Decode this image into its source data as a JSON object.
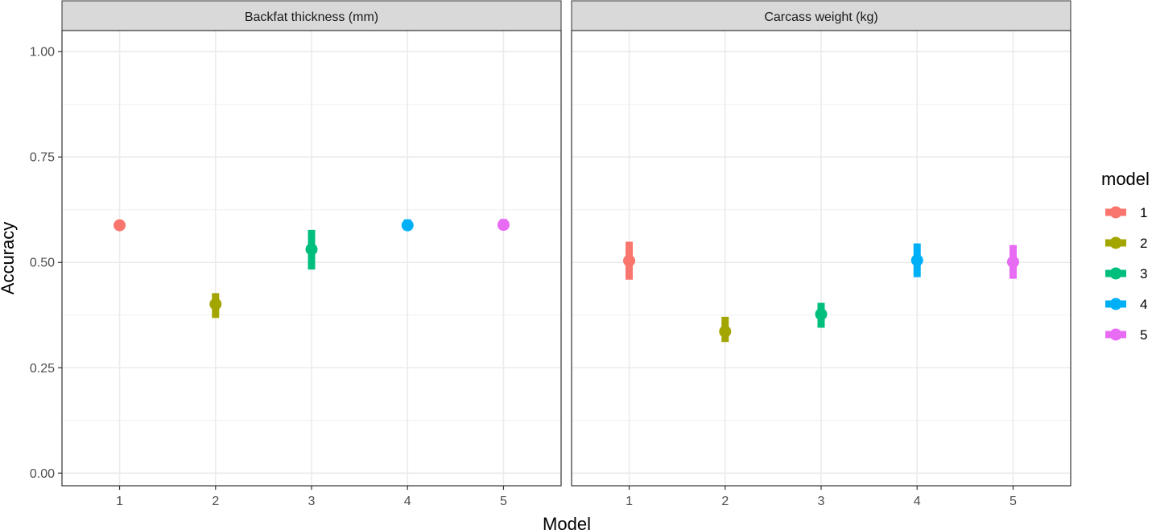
{
  "chart_data": {
    "type": "scatter",
    "subtype": "point-range (faceted)",
    "xlabel": "Model",
    "ylabel": "Accuracy",
    "ylim": [
      -0.03,
      1.05
    ],
    "yticks": [
      "0.00",
      "0.25",
      "0.50",
      "0.75",
      "1.00"
    ],
    "ytick_values": [
      0,
      0.25,
      0.5,
      0.75,
      1.0
    ],
    "categories": [
      "1",
      "2",
      "3",
      "4",
      "5"
    ],
    "grid": true,
    "legend": {
      "title": "model",
      "position": "right",
      "entries": [
        {
          "label": "1",
          "color": "#F8766D"
        },
        {
          "label": "2",
          "color": "#A3A500"
        },
        {
          "label": "3",
          "color": "#00BF7D"
        },
        {
          "label": "4",
          "color": "#00B0F6"
        },
        {
          "label": "5",
          "color": "#E76BF3"
        }
      ]
    },
    "panels": [
      {
        "title": "Backfat thickness (mm)",
        "points": [
          {
            "model": "1",
            "y": 0.588,
            "low": 0.578,
            "high": 0.6
          },
          {
            "model": "2",
            "y": 0.401,
            "low": 0.368,
            "high": 0.427
          },
          {
            "model": "3",
            "y": 0.531,
            "low": 0.483,
            "high": 0.577
          },
          {
            "model": "4",
            "y": 0.588,
            "low": 0.576,
            "high": 0.602
          },
          {
            "model": "5",
            "y": 0.589,
            "low": 0.577,
            "high": 0.603
          }
        ]
      },
      {
        "title": "Carcass weight (kg)",
        "points": [
          {
            "model": "1",
            "y": 0.504,
            "low": 0.459,
            "high": 0.549
          },
          {
            "model": "2",
            "y": 0.336,
            "low": 0.311,
            "high": 0.371
          },
          {
            "model": "3",
            "y": 0.377,
            "low": 0.345,
            "high": 0.404
          },
          {
            "model": "4",
            "y": 0.505,
            "low": 0.465,
            "high": 0.545
          },
          {
            "model": "5",
            "y": 0.501,
            "low": 0.461,
            "high": 0.541
          }
        ]
      }
    ]
  }
}
